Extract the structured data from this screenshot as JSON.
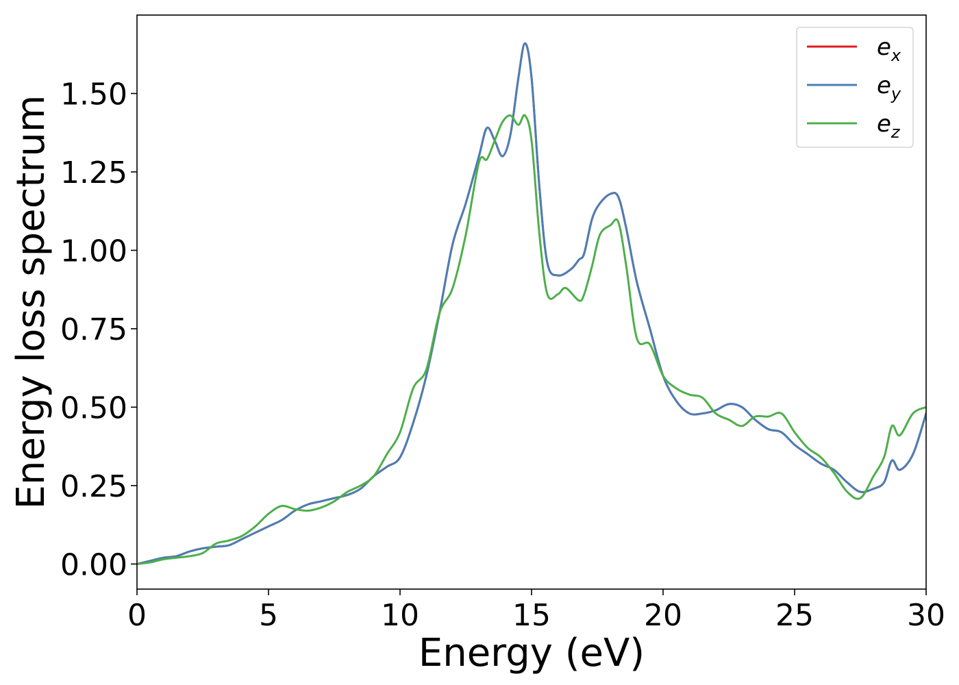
{
  "chart_data": {
    "type": "line",
    "title": "",
    "xlabel": "Energy (eV)",
    "ylabel": "Energy loss spectrum",
    "xlim": [
      0,
      30
    ],
    "ylim": [
      -0.08,
      1.75
    ],
    "x_ticks": [
      "0",
      "5",
      "10",
      "15",
      "20",
      "25",
      "30"
    ],
    "y_ticks": [
      "0.00",
      "0.25",
      "0.50",
      "0.75",
      "1.00",
      "1.25",
      "1.50"
    ],
    "grid": false,
    "legend_position": "top-right",
    "series": [
      {
        "name": "e_x",
        "label_base": "e",
        "label_sub": "x",
        "color": "#e41a1c",
        "x": [
          0,
          0.5,
          1,
          1.5,
          2,
          2.5,
          3,
          3.5,
          4,
          4.5,
          5,
          5.5,
          6,
          6.5,
          7,
          7.5,
          8,
          8.5,
          9,
          9.5,
          10,
          10.5,
          11,
          11.5,
          12,
          12.5,
          13,
          13.3,
          13.6,
          13.9,
          14.2,
          14.5,
          14.75,
          15,
          15.3,
          15.6,
          16,
          16.5,
          16.8,
          17,
          17.3,
          17.6,
          18,
          18.3,
          18.6,
          19,
          19.5,
          20,
          20.5,
          21,
          21.5,
          22,
          22.5,
          23,
          23.5,
          24,
          24.5,
          25,
          25.5,
          26,
          26.5,
          27,
          27.5,
          28,
          28.4,
          28.7,
          29,
          29.5,
          30
        ],
        "values": [
          0.0,
          0.01,
          0.02,
          0.025,
          0.04,
          0.05,
          0.055,
          0.06,
          0.08,
          0.1,
          0.12,
          0.14,
          0.17,
          0.19,
          0.2,
          0.21,
          0.22,
          0.24,
          0.28,
          0.31,
          0.34,
          0.45,
          0.6,
          0.8,
          1.02,
          1.15,
          1.3,
          1.39,
          1.35,
          1.3,
          1.37,
          1.55,
          1.66,
          1.55,
          1.2,
          0.96,
          0.92,
          0.94,
          0.97,
          0.99,
          1.1,
          1.15,
          1.18,
          1.17,
          1.07,
          0.9,
          0.75,
          0.6,
          0.52,
          0.48,
          0.48,
          0.49,
          0.51,
          0.5,
          0.46,
          0.43,
          0.42,
          0.38,
          0.35,
          0.32,
          0.3,
          0.26,
          0.23,
          0.24,
          0.26,
          0.33,
          0.3,
          0.35,
          0.48
        ]
      },
      {
        "name": "e_y",
        "label_base": "e",
        "label_sub": "y",
        "color": "#4a7fb5",
        "x": [
          0,
          0.5,
          1,
          1.5,
          2,
          2.5,
          3,
          3.5,
          4,
          4.5,
          5,
          5.5,
          6,
          6.5,
          7,
          7.5,
          8,
          8.5,
          9,
          9.5,
          10,
          10.5,
          11,
          11.5,
          12,
          12.5,
          13,
          13.3,
          13.6,
          13.9,
          14.2,
          14.5,
          14.75,
          15,
          15.3,
          15.6,
          16,
          16.5,
          16.8,
          17,
          17.3,
          17.6,
          18,
          18.3,
          18.6,
          19,
          19.5,
          20,
          20.5,
          21,
          21.5,
          22,
          22.5,
          23,
          23.5,
          24,
          24.5,
          25,
          25.5,
          26,
          26.5,
          27,
          27.5,
          28,
          28.4,
          28.7,
          29,
          29.5,
          30
        ],
        "values": [
          0.0,
          0.01,
          0.02,
          0.025,
          0.04,
          0.05,
          0.055,
          0.06,
          0.08,
          0.1,
          0.12,
          0.14,
          0.17,
          0.19,
          0.2,
          0.21,
          0.22,
          0.24,
          0.28,
          0.31,
          0.34,
          0.45,
          0.6,
          0.8,
          1.02,
          1.15,
          1.3,
          1.39,
          1.35,
          1.3,
          1.37,
          1.55,
          1.66,
          1.55,
          1.2,
          0.96,
          0.92,
          0.94,
          0.97,
          0.99,
          1.1,
          1.15,
          1.18,
          1.17,
          1.07,
          0.9,
          0.75,
          0.6,
          0.52,
          0.48,
          0.48,
          0.49,
          0.51,
          0.5,
          0.46,
          0.43,
          0.42,
          0.38,
          0.35,
          0.32,
          0.3,
          0.26,
          0.23,
          0.24,
          0.26,
          0.33,
          0.3,
          0.35,
          0.48
        ]
      },
      {
        "name": "e_z",
        "label_base": "e",
        "label_sub": "z",
        "color": "#4daf4a",
        "x": [
          0,
          0.5,
          1,
          1.5,
          2,
          2.5,
          3,
          3.5,
          4,
          4.5,
          5,
          5.5,
          6,
          6.5,
          7,
          7.5,
          8,
          8.5,
          9,
          9.5,
          10,
          10.5,
          11,
          11.5,
          12,
          12.5,
          13,
          13.3,
          13.6,
          13.9,
          14.2,
          14.5,
          14.75,
          15,
          15.3,
          15.6,
          16,
          16.3,
          16.8,
          17,
          17.3,
          17.6,
          18,
          18.3,
          18.6,
          19,
          19.5,
          20,
          20.5,
          21,
          21.5,
          22,
          22.5,
          23,
          23.5,
          24,
          24.5,
          25,
          25.5,
          26,
          26.5,
          27,
          27.5,
          28,
          28.4,
          28.7,
          29,
          29.5,
          30
        ],
        "values": [
          0.0,
          0.005,
          0.015,
          0.02,
          0.025,
          0.035,
          0.065,
          0.075,
          0.09,
          0.12,
          0.16,
          0.185,
          0.175,
          0.17,
          0.18,
          0.2,
          0.23,
          0.25,
          0.28,
          0.35,
          0.42,
          0.56,
          0.62,
          0.8,
          0.88,
          1.05,
          1.28,
          1.29,
          1.35,
          1.41,
          1.43,
          1.4,
          1.43,
          1.35,
          1.05,
          0.86,
          0.86,
          0.88,
          0.84,
          0.86,
          0.95,
          1.05,
          1.08,
          1.09,
          0.95,
          0.72,
          0.7,
          0.6,
          0.56,
          0.54,
          0.53,
          0.48,
          0.46,
          0.44,
          0.47,
          0.47,
          0.48,
          0.42,
          0.37,
          0.34,
          0.29,
          0.23,
          0.21,
          0.28,
          0.34,
          0.44,
          0.41,
          0.48,
          0.5
        ]
      }
    ]
  }
}
